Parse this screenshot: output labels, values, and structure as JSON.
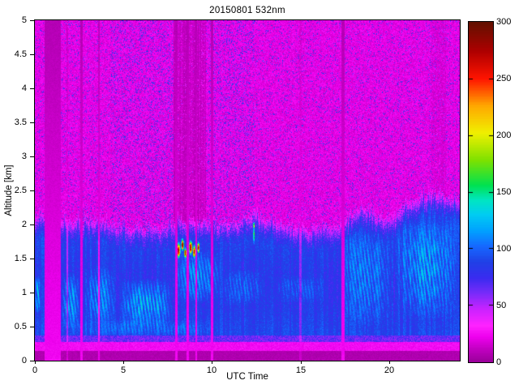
{
  "chart_data": {
    "type": "heatmap",
    "title": "20150801 532nm",
    "xlabel": "UTC Time",
    "ylabel": "Altitude [km]",
    "x_range_hours": [
      0,
      24
    ],
    "y_range_km": [
      0,
      5
    ],
    "value_range": [
      0,
      300
    ],
    "grid": false,
    "colorbar_position": "right",
    "x_ticks": [
      {
        "v": 0,
        "label": "0"
      },
      {
        "v": 5,
        "label": "5"
      },
      {
        "v": 10,
        "label": "10"
      },
      {
        "v": 15,
        "label": "15"
      },
      {
        "v": 20,
        "label": "20"
      }
    ],
    "y_ticks": [
      {
        "v": 0,
        "label": "0"
      },
      {
        "v": 0.5,
        "label": "0.5"
      },
      {
        "v": 1,
        "label": "1"
      },
      {
        "v": 1.5,
        "label": "1.5"
      },
      {
        "v": 2,
        "label": "2"
      },
      {
        "v": 2.5,
        "label": "2.5"
      },
      {
        "v": 3,
        "label": "3"
      },
      {
        "v": 3.5,
        "label": "3.5"
      },
      {
        "v": 4,
        "label": "4"
      },
      {
        "v": 4.5,
        "label": "4.5"
      },
      {
        "v": 5,
        "label": "5"
      }
    ],
    "colorbar_ticks": [
      {
        "v": 0,
        "label": "0"
      },
      {
        "v": 50,
        "label": "50"
      },
      {
        "v": 100,
        "label": "100"
      },
      {
        "v": 150,
        "label": "150"
      },
      {
        "v": 200,
        "label": "200"
      },
      {
        "v": 250,
        "label": "250"
      },
      {
        "v": 300,
        "label": "300"
      }
    ],
    "colormap_stops": [
      [
        0,
        "#9A009A"
      ],
      [
        12,
        "#C400C4"
      ],
      [
        22,
        "#EE00EE"
      ],
      [
        32,
        "#FF22FF"
      ],
      [
        46,
        "#CC22FF"
      ],
      [
        60,
        "#7B2BFA"
      ],
      [
        74,
        "#3A2BF0"
      ],
      [
        88,
        "#2041E6"
      ],
      [
        102,
        "#1668FF"
      ],
      [
        116,
        "#00A2FF"
      ],
      [
        130,
        "#00CCF2"
      ],
      [
        143,
        "#00E6C0"
      ],
      [
        156,
        "#00E150"
      ],
      [
        178,
        "#7DE100"
      ],
      [
        202,
        "#F0F000"
      ],
      [
        226,
        "#FFA800"
      ],
      [
        250,
        "#FF1400"
      ],
      [
        274,
        "#AF0000"
      ],
      [
        300,
        "#621100"
      ]
    ],
    "background_noise_value": 20,
    "boundary_layer_value": 86,
    "surface_bands": {
      "dark_bottom_top_km": 0.14,
      "bright_magenta_top_km": 0.27,
      "navy_line_top_km": 0.37
    },
    "bl_top_profile_km": [
      [
        0,
        1.92
      ],
      [
        1,
        1.88
      ],
      [
        2,
        1.82
      ],
      [
        3,
        1.82
      ],
      [
        4,
        1.78
      ],
      [
        5,
        1.74
      ],
      [
        6,
        1.72
      ],
      [
        7,
        1.73
      ],
      [
        8,
        1.8
      ],
      [
        9,
        1.82
      ],
      [
        10,
        1.8
      ],
      [
        11,
        1.78
      ],
      [
        12,
        1.86
      ],
      [
        12.4,
        1.98
      ],
      [
        13,
        1.8
      ],
      [
        14,
        1.76
      ],
      [
        15,
        1.73
      ],
      [
        16,
        1.72
      ],
      [
        17,
        1.74
      ],
      [
        17.8,
        1.88
      ],
      [
        18.5,
        1.98
      ],
      [
        19.5,
        1.9
      ],
      [
        20,
        1.84
      ],
      [
        21,
        2.06
      ],
      [
        21.8,
        2.18
      ],
      [
        22.5,
        2.22
      ],
      [
        23.2,
        2.2
      ],
      [
        24,
        2.16
      ]
    ],
    "gap_stripes_utc": [
      [
        0.55,
        1.45,
        1
      ],
      [
        1.78,
        1.88,
        0.6
      ],
      [
        2.55,
        2.7,
        1
      ],
      [
        3.55,
        3.68,
        0.9
      ],
      [
        7.92,
        8.04,
        1
      ],
      [
        8.55,
        8.68,
        1
      ],
      [
        9.05,
        9.18,
        1
      ],
      [
        9.95,
        10.08,
        1
      ],
      [
        14.95,
        15.05,
        0.45
      ],
      [
        17.3,
        17.48,
        1
      ]
    ],
    "attenuated_zones_utc": [
      [
        7.85,
        9.65,
        1.0
      ],
      [
        22.4,
        23.2,
        0.4
      ]
    ],
    "blue_speckle_zones_utc": [
      [
        4.3,
        7.8
      ],
      [
        9.8,
        12.4
      ]
    ],
    "cyan_plumes": [
      [
        0.0,
        0.32,
        0.7,
        1.25,
        58
      ],
      [
        1.5,
        2.55,
        0.45,
        1.3,
        46
      ],
      [
        2.72,
        4.6,
        0.5,
        1.4,
        40
      ],
      [
        4.8,
        7.8,
        0.5,
        1.2,
        52
      ],
      [
        7.9,
        10.6,
        0.85,
        1.6,
        42
      ],
      [
        10.5,
        13.0,
        0.8,
        1.35,
        28
      ],
      [
        13.5,
        16.5,
        0.85,
        1.25,
        22
      ],
      [
        17.2,
        20.3,
        0.5,
        1.9,
        38
      ],
      [
        20.3,
        23.9,
        0.6,
        2.05,
        46
      ],
      [
        1.5,
        10.5,
        0.36,
        0.6,
        22
      ]
    ],
    "cloud_blobs": [
      [
        8.12,
        1.62,
        0.1,
        0.11,
        295
      ],
      [
        8.34,
        1.7,
        0.08,
        0.09,
        285
      ],
      [
        8.5,
        1.58,
        0.07,
        0.08,
        280
      ],
      [
        8.8,
        1.66,
        0.09,
        0.1,
        295
      ],
      [
        9.0,
        1.6,
        0.08,
        0.09,
        288
      ],
      [
        9.24,
        1.66,
        0.07,
        0.08,
        282
      ],
      [
        12.37,
        1.98,
        0.04,
        0.06,
        235
      ]
    ],
    "updraft_spike": {
      "t": 12.37,
      "z_base": 1.7,
      "z_top": 2.05,
      "value": 195
    }
  }
}
